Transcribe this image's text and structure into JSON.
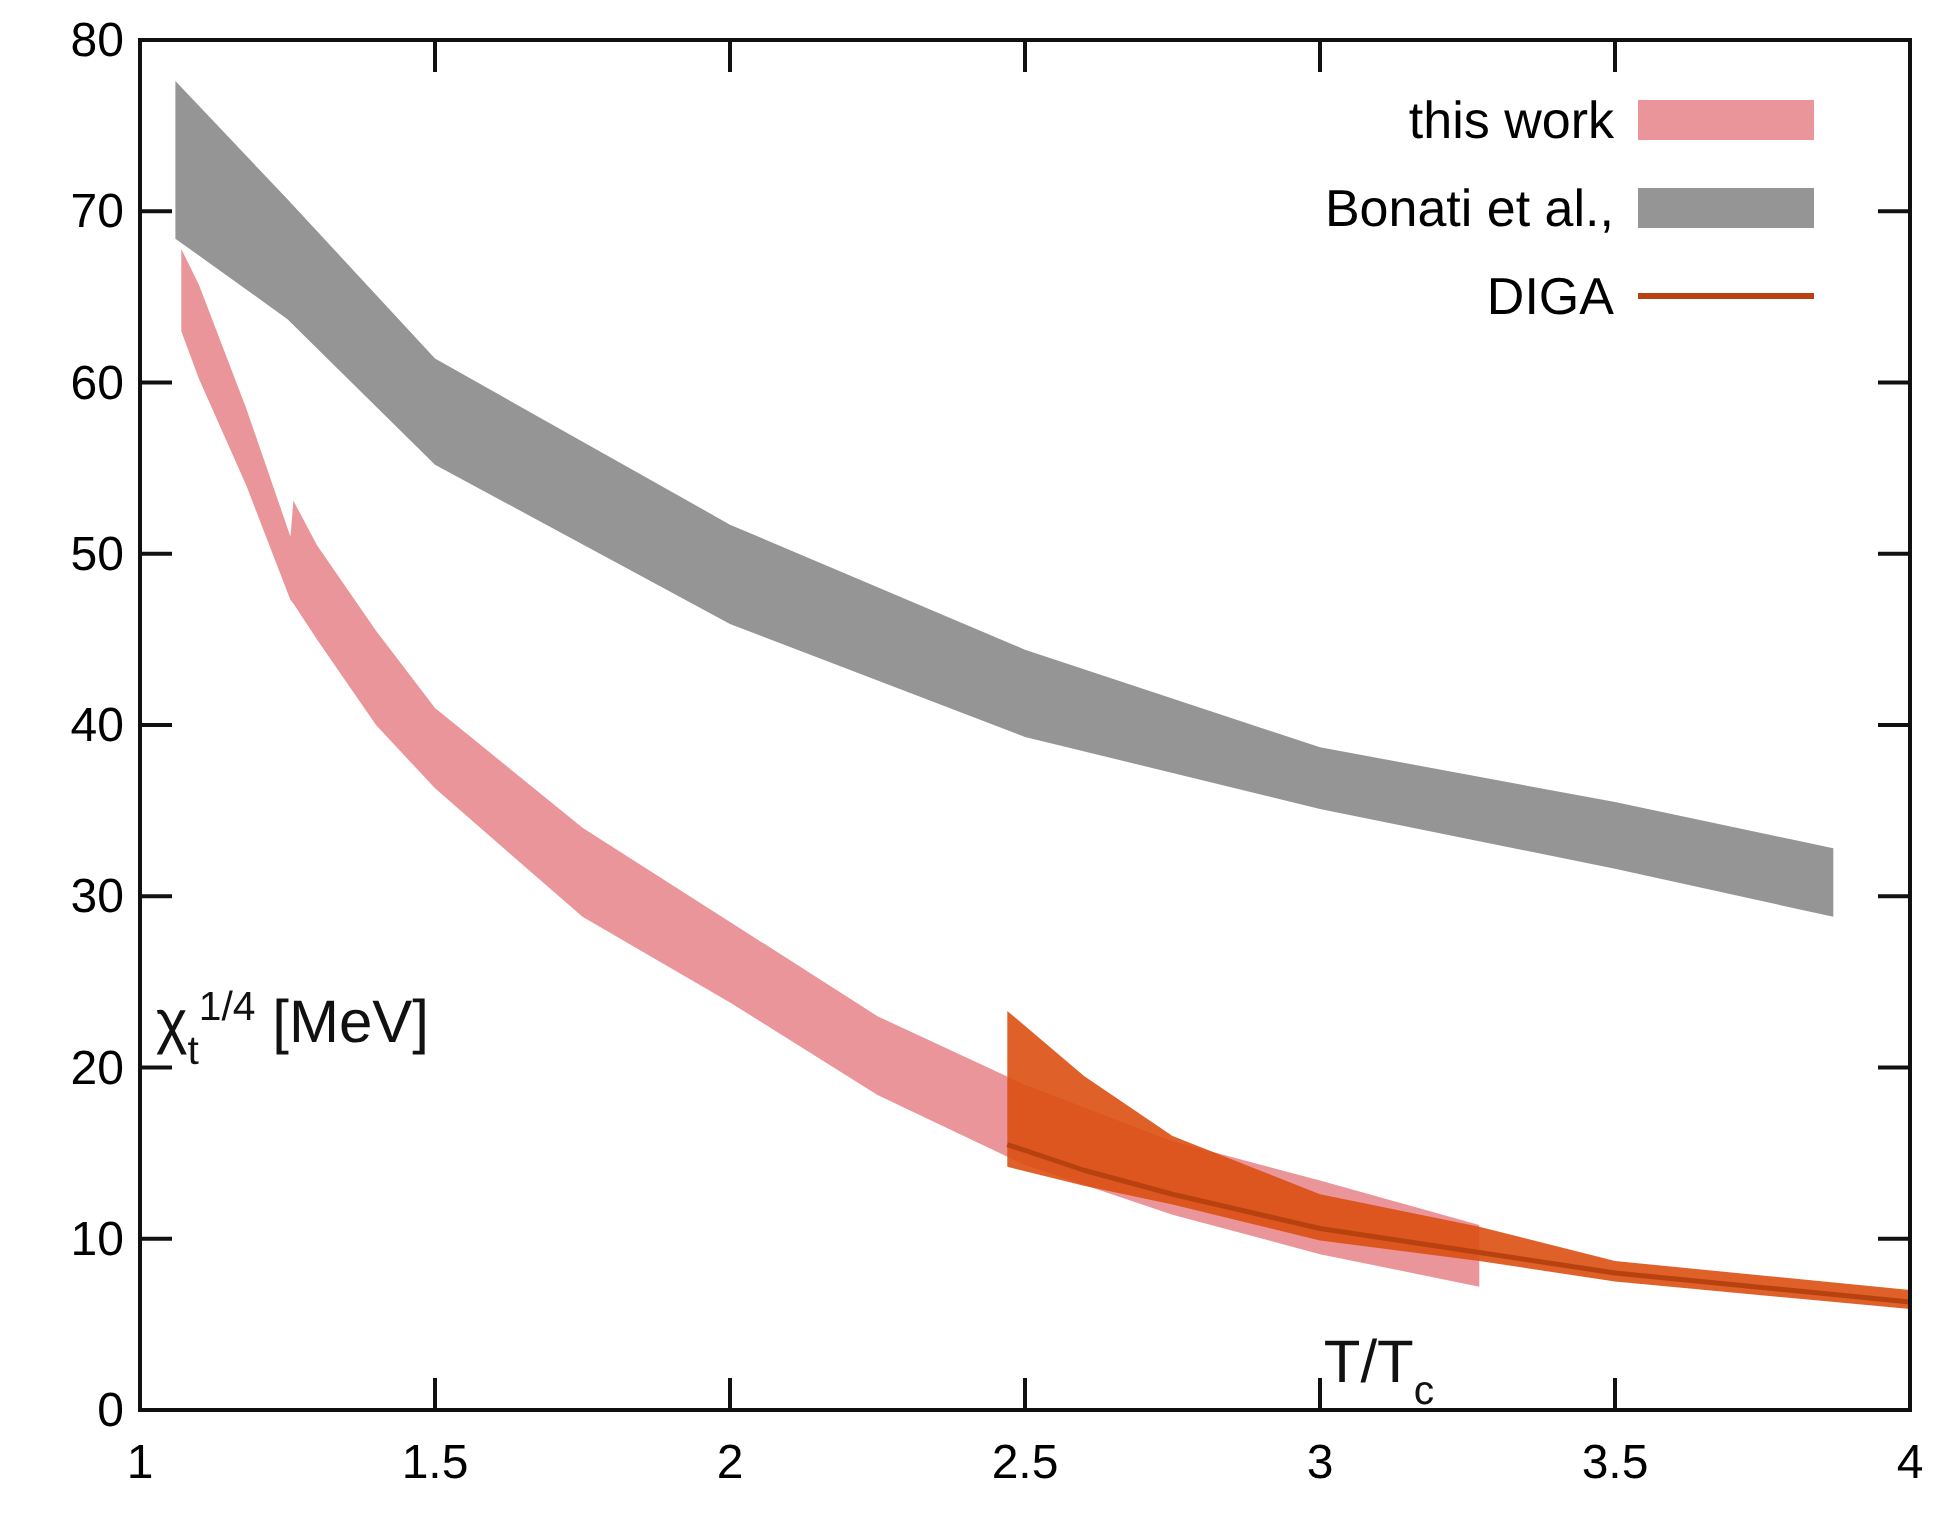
{
  "chart_data": {
    "type": "line",
    "xlabel": "T/T$_{c}$",
    "ylabel": "χ$_{t}$$^{1/4}$ [MeV]",
    "xlim": [
      1,
      4
    ],
    "xticks": [
      1,
      1.5,
      2,
      2.5,
      3,
      3.5,
      4
    ],
    "ylim": [
      0,
      80
    ],
    "yticks": [
      0,
      10,
      20,
      30,
      40,
      50,
      60,
      70,
      80
    ],
    "legend": "top right",
    "grid": false,
    "series": [
      {
        "name": "this work",
        "color": "#e88a8f",
        "x": [
          1.07,
          1.1,
          1.18,
          1.255,
          1.26,
          1.3,
          1.4,
          1.5,
          1.75,
          2,
          2.25,
          2.5,
          2.75,
          3,
          3.27
        ],
        "values": [
          null,
          null,
          null,
          null,
          null,
          null,
          null,
          null,
          null,
          null,
          null,
          null,
          null,
          null,
          null
        ],
        "upper": [
          67.8,
          65.7,
          58.5,
          51.0,
          53.1,
          50.5,
          45.5,
          41.0,
          34.0,
          28.5,
          23.0,
          19.0,
          15.7,
          13.4,
          10.8
        ],
        "lower": [
          63.0,
          60.2,
          54.0,
          47.3,
          47.1,
          45.0,
          40.0,
          36.3,
          28.8,
          23.8,
          18.4,
          14.3,
          11.4,
          9.1,
          7.2
        ]
      },
      {
        "name": "Bonati et al.,",
        "color": "#8a8a8a",
        "x": [
          1.06,
          1.25,
          1.5,
          2,
          2.5,
          3,
          3.5,
          3.87
        ],
        "values": [
          null,
          null,
          null,
          null,
          null,
          null,
          null,
          null
        ],
        "upper": [
          77.6,
          70.7,
          61.4,
          51.7,
          44.4,
          38.7,
          35.5,
          32.8
        ],
        "lower": [
          68.4,
          63.7,
          55.2,
          45.9,
          39.3,
          35.1,
          31.6,
          28.8
        ]
      },
      {
        "name": "DIGA",
        "color": "#b8420f",
        "x": [
          2.47,
          2.6,
          2.75,
          3,
          3.27,
          3.5,
          4
        ],
        "values": [
          15.5,
          14.0,
          12.6,
          10.6,
          9.2,
          8.0,
          6.3
        ],
        "upper": [
          23.3,
          19.5,
          16.0,
          12.6,
          10.7,
          8.7,
          7.0
        ],
        "lower": [
          14.2,
          13.1,
          12.0,
          9.9,
          8.7,
          7.5,
          5.9
        ]
      }
    ]
  }
}
